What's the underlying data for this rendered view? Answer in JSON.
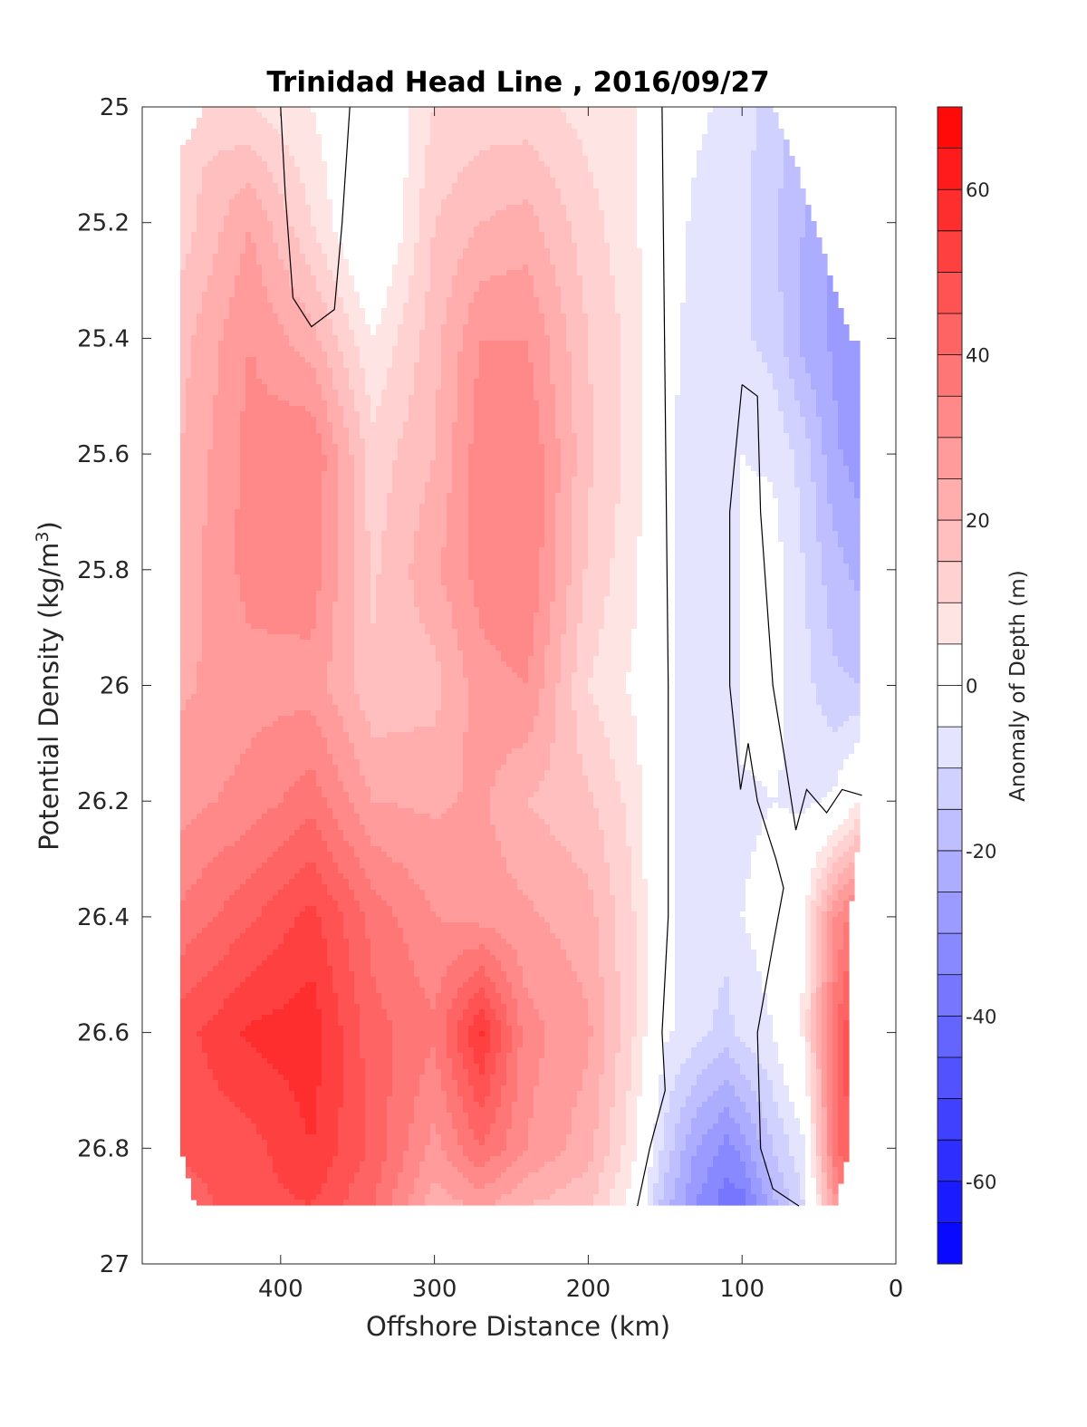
{
  "chart_data": {
    "type": "heatmap",
    "title": "Trinidad Head Line , 2016/09/27",
    "xlabel": "Offshore Distance (km)",
    "ylabel_main": "Potential Density (kg/m",
    "ylabel_sup": "3",
    "ylabel_close": ")",
    "colorbar_label": "Anomaly of Depth (m)",
    "xlim": [
      490,
      0
    ],
    "ylim": [
      27,
      25
    ],
    "x_reversed": true,
    "y_reversed": true,
    "xticks": [
      400,
      300,
      200,
      100,
      0
    ],
    "xtick_labels": [
      "400",
      "300",
      "200",
      "100",
      "0"
    ],
    "yticks": [
      25,
      25.2,
      25.4,
      25.6,
      25.8,
      26,
      26.2,
      26.4,
      26.6,
      26.8,
      27
    ],
    "ytick_labels": [
      "25",
      "25.2",
      "25.4",
      "25.6",
      "25.8",
      "26",
      "26.2",
      "26.4",
      "26.6",
      "26.8",
      "27"
    ],
    "colorbar": {
      "range": [
        -70,
        70
      ],
      "ticks": [
        60,
        40,
        20,
        0,
        -20,
        -40,
        -60
      ],
      "tick_labels": [
        "60",
        "40",
        "20",
        "0",
        "-20",
        "-40",
        "-60"
      ],
      "level_step": 5,
      "colormap": "blue-white-red",
      "low_color": "#0000ff",
      "mid_color": "#ffffff",
      "high_color": "#ff0000"
    },
    "x": [
      465,
      420,
      380,
      340,
      300,
      270,
      240,
      200,
      170,
      150,
      130,
      110,
      100,
      80,
      60,
      40,
      22
    ],
    "y": [
      25,
      25.2,
      25.4,
      25.6,
      25.8,
      26,
      26.2,
      26.4,
      26.6,
      26.8,
      26.9
    ],
    "z": [
      [
        null,
        10,
        5,
        -3,
        10,
        12,
        12,
        8,
        5,
        -1,
        -4,
        -6,
        -8,
        -12,
        -18,
        null,
        null
      ],
      [
        12,
        25,
        10,
        -5,
        15,
        20,
        22,
        12,
        6,
        -2,
        -6,
        -8,
        -9,
        -14,
        -20,
        -27,
        null
      ],
      [
        18,
        30,
        22,
        5,
        18,
        30,
        30,
        15,
        8,
        -3,
        -7,
        -8,
        -9,
        -12,
        -22,
        -26,
        -30
      ],
      [
        20,
        32,
        35,
        12,
        20,
        33,
        35,
        16,
        8,
        -3,
        -9,
        -9,
        -5,
        -6,
        -12,
        -24,
        -28
      ],
      [
        22,
        32,
        33,
        14,
        24,
        32,
        35,
        14,
        6,
        -3,
        -9,
        -10,
        -3,
        -2,
        -10,
        -18,
        -22
      ],
      [
        24,
        28,
        28,
        16,
        18,
        28,
        30,
        10,
        4,
        -3,
        -8,
        -10,
        -3,
        -3,
        -8,
        -14,
        -15
      ],
      [
        28,
        32,
        38,
        25,
        24,
        26,
        20,
        16,
        8,
        -4,
        -8,
        -8,
        -6,
        -5,
        -6,
        -4,
        6
      ],
      [
        36,
        44,
        52,
        38,
        30,
        28,
        26,
        22,
        10,
        -3,
        -8,
        -8,
        -5,
        -3,
        4,
        30,
        40
      ],
      [
        48,
        56,
        58,
        42,
        36,
        56,
        32,
        26,
        10,
        -4,
        -8,
        -12,
        -8,
        -5,
        6,
        38,
        58
      ],
      [
        46,
        48,
        55,
        44,
        28,
        40,
        30,
        22,
        6,
        -12,
        -25,
        -32,
        -28,
        -15,
        -6,
        38,
        52
      ],
      [
        42,
        48,
        50,
        40,
        22,
        26,
        20,
        16,
        2,
        -18,
        -30,
        -38,
        -38,
        -22,
        -10,
        28,
        40
      ]
    ],
    "mask": {
      "left_edge": [
        [
          25,
          465
        ],
        [
          26.8,
          465
        ],
        [
          26.9,
          455
        ]
      ],
      "right_edge": [
        [
          25,
          80
        ],
        [
          25.1,
          65
        ],
        [
          25.4,
          30
        ],
        [
          25.4,
          22
        ],
        [
          26.2,
          22
        ],
        [
          26.4,
          30
        ],
        [
          26.8,
          30
        ],
        [
          26.9,
          40
        ]
      ],
      "nan_corners": [
        {
          "x": [
            465,
            420
          ],
          "y": [
            25,
            25.2
          ]
        }
      ]
    },
    "zero_contours": [
      [
        [
          355,
          25
        ],
        [
          360,
          25.2
        ],
        [
          365,
          25.35
        ],
        [
          380,
          25.38
        ],
        [
          392,
          25.33
        ],
        [
          397,
          25.15
        ],
        [
          400,
          25
        ]
      ],
      [
        [
          152,
          25
        ],
        [
          148,
          26
        ],
        [
          148,
          26.4
        ],
        [
          152,
          26.6
        ],
        [
          150,
          26.7
        ],
        [
          160,
          26.8
        ],
        [
          168,
          26.9
        ]
      ],
      [
        [
          100,
          25.48
        ],
        [
          90,
          25.5
        ],
        [
          88,
          25.7
        ],
        [
          80,
          26.0
        ],
        [
          72,
          26.13
        ],
        [
          65,
          26.25
        ],
        [
          58,
          26.18
        ],
        [
          45,
          26.22
        ],
        [
          35,
          26.18
        ],
        [
          22,
          26.19
        ]
      ],
      [
        [
          100,
          25.48
        ],
        [
          108,
          25.7
        ],
        [
          108,
          26.0
        ],
        [
          101,
          26.18
        ],
        [
          96,
          26.1
        ],
        [
          90,
          26.2
        ],
        [
          78,
          26.3
        ],
        [
          73,
          26.35
        ],
        [
          80,
          26.45
        ],
        [
          90,
          26.6
        ],
        [
          88,
          26.8
        ],
        [
          80,
          26.87
        ],
        [
          63,
          26.9
        ]
      ]
    ]
  }
}
